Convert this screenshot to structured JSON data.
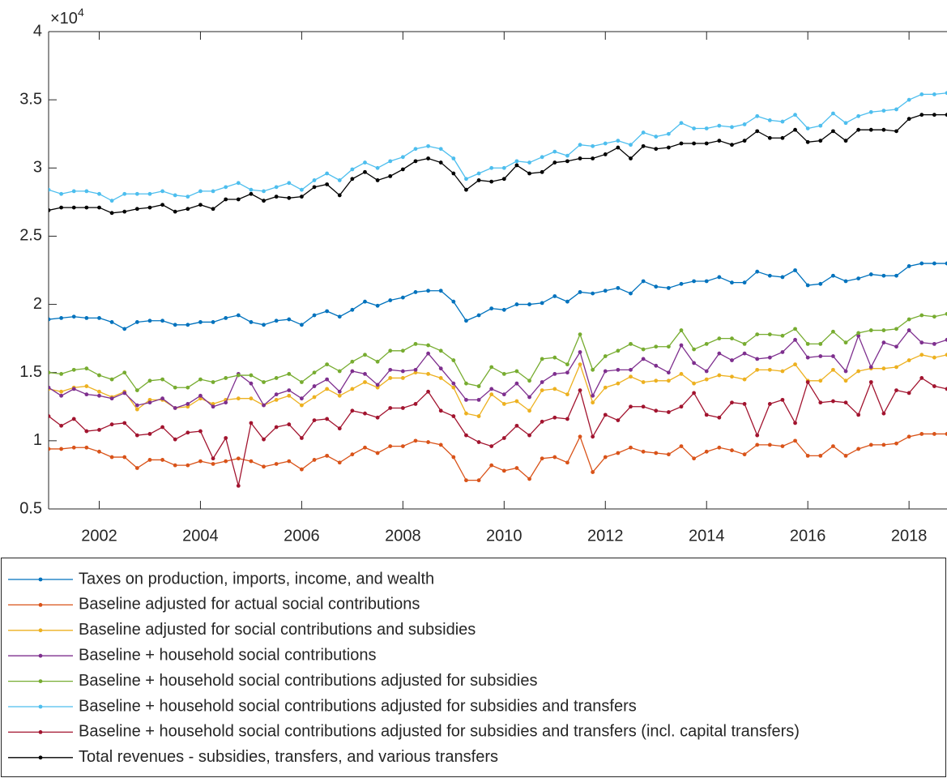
{
  "chart_data": {
    "type": "line",
    "y_multiplier": {
      "base": "×10",
      "exponent": "4"
    },
    "xlim": [
      2001,
      2018.75
    ],
    "xticks": [
      2002,
      2004,
      2006,
      2008,
      2010,
      2012,
      2014,
      2016,
      2018
    ],
    "ylim": [
      0.5,
      4
    ],
    "yticks": [
      0.5,
      1,
      1.5,
      2,
      2.5,
      3,
      3.5,
      4
    ],
    "x": [
      2001,
      2001.25,
      2001.5,
      2001.75,
      2002,
      2002.25,
      2002.5,
      2002.75,
      2003,
      2003.25,
      2003.5,
      2003.75,
      2004,
      2004.25,
      2004.5,
      2004.75,
      2005,
      2005.25,
      2005.5,
      2005.75,
      2006,
      2006.25,
      2006.5,
      2006.75,
      2007,
      2007.25,
      2007.5,
      2007.75,
      2008,
      2008.25,
      2008.5,
      2008.75,
      2009,
      2009.25,
      2009.5,
      2009.75,
      2010,
      2010.25,
      2010.5,
      2010.75,
      2011,
      2011.25,
      2011.5,
      2011.75,
      2012,
      2012.25,
      2012.5,
      2012.75,
      2013,
      2013.25,
      2013.5,
      2013.75,
      2014,
      2014.25,
      2014.5,
      2014.75,
      2015,
      2015.25,
      2015.5,
      2015.75,
      2016,
      2016.25,
      2016.5,
      2016.75,
      2017,
      2017.25,
      2017.5,
      2017.75,
      2018,
      2018.25,
      2018.5,
      2018.75
    ],
    "series": [
      {
        "name": "Taxes on production, imports, income, and wealth",
        "color": "#0072bd",
        "values": [
          1.89,
          1.9,
          1.91,
          1.9,
          1.9,
          1.87,
          1.82,
          1.87,
          1.88,
          1.88,
          1.85,
          1.85,
          1.87,
          1.87,
          1.9,
          1.92,
          1.87,
          1.85,
          1.88,
          1.89,
          1.85,
          1.92,
          1.95,
          1.91,
          1.96,
          2.02,
          1.99,
          2.03,
          2.05,
          2.09,
          2.1,
          2.1,
          2.02,
          1.88,
          1.92,
          1.97,
          1.96,
          2.0,
          2.0,
          2.01,
          2.06,
          2.02,
          2.09,
          2.08,
          2.1,
          2.12,
          2.08,
          2.17,
          2.13,
          2.12,
          2.15,
          2.17,
          2.17,
          2.2,
          2.16,
          2.16,
          2.24,
          2.21,
          2.2,
          2.25,
          2.14,
          2.15,
          2.21,
          2.17,
          2.19,
          2.22,
          2.21,
          2.21,
          2.28,
          2.3,
          2.3,
          2.3
        ]
      },
      {
        "name": "Baseline adjusted for actual social contributions",
        "color": "#d95319",
        "values": [
          0.94,
          0.94,
          0.95,
          0.95,
          0.92,
          0.88,
          0.88,
          0.8,
          0.86,
          0.86,
          0.82,
          0.82,
          0.85,
          0.83,
          0.85,
          0.87,
          0.85,
          0.81,
          0.83,
          0.85,
          0.79,
          0.86,
          0.89,
          0.84,
          0.9,
          0.95,
          0.91,
          0.96,
          0.96,
          1.0,
          0.99,
          0.97,
          0.88,
          0.71,
          0.71,
          0.82,
          0.78,
          0.8,
          0.72,
          0.87,
          0.88,
          0.84,
          1.03,
          0.77,
          0.88,
          0.91,
          0.95,
          0.92,
          0.91,
          0.9,
          0.96,
          0.87,
          0.92,
          0.95,
          0.93,
          0.9,
          0.97,
          0.97,
          0.96,
          1.0,
          0.89,
          0.89,
          0.96,
          0.89,
          0.94,
          0.97,
          0.97,
          0.98,
          1.03,
          1.05,
          1.05,
          1.05
        ]
      },
      {
        "name": "Baseline adjusted for social contributions and subsidies",
        "color": "#edb120",
        "values": [
          1.38,
          1.36,
          1.39,
          1.4,
          1.36,
          1.32,
          1.36,
          1.23,
          1.3,
          1.3,
          1.24,
          1.25,
          1.31,
          1.27,
          1.3,
          1.31,
          1.31,
          1.26,
          1.3,
          1.33,
          1.26,
          1.32,
          1.38,
          1.33,
          1.38,
          1.43,
          1.39,
          1.46,
          1.46,
          1.5,
          1.49,
          1.46,
          1.39,
          1.2,
          1.18,
          1.34,
          1.27,
          1.29,
          1.22,
          1.37,
          1.38,
          1.34,
          1.56,
          1.28,
          1.39,
          1.42,
          1.47,
          1.43,
          1.44,
          1.44,
          1.49,
          1.42,
          1.45,
          1.48,
          1.47,
          1.45,
          1.52,
          1.52,
          1.51,
          1.56,
          1.44,
          1.44,
          1.52,
          1.44,
          1.51,
          1.53,
          1.53,
          1.54,
          1.59,
          1.63,
          1.61,
          1.63
        ]
      },
      {
        "name": "Baseline + household social contributions",
        "color": "#7e2f8e",
        "values": [
          1.39,
          1.33,
          1.38,
          1.34,
          1.33,
          1.31,
          1.35,
          1.26,
          1.28,
          1.31,
          1.24,
          1.27,
          1.33,
          1.25,
          1.28,
          1.49,
          1.42,
          1.26,
          1.34,
          1.37,
          1.31,
          1.4,
          1.45,
          1.36,
          1.51,
          1.49,
          1.41,
          1.52,
          1.51,
          1.52,
          1.64,
          1.53,
          1.42,
          1.3,
          1.3,
          1.38,
          1.34,
          1.42,
          1.32,
          1.43,
          1.49,
          1.5,
          1.65,
          1.33,
          1.51,
          1.52,
          1.52,
          1.6,
          1.55,
          1.5,
          1.7,
          1.57,
          1.51,
          1.64,
          1.59,
          1.64,
          1.6,
          1.61,
          1.65,
          1.74,
          1.61,
          1.62,
          1.62,
          1.51,
          1.77,
          1.54,
          1.72,
          1.69,
          1.81,
          1.72,
          1.71,
          1.74
        ]
      },
      {
        "name": "Baseline + household social contributions adjusted for subsidies",
        "color": "#77ac30",
        "values": [
          1.5,
          1.49,
          1.52,
          1.53,
          1.48,
          1.45,
          1.5,
          1.37,
          1.44,
          1.45,
          1.39,
          1.39,
          1.45,
          1.43,
          1.46,
          1.48,
          1.48,
          1.43,
          1.46,
          1.49,
          1.43,
          1.5,
          1.56,
          1.51,
          1.58,
          1.63,
          1.58,
          1.66,
          1.66,
          1.71,
          1.7,
          1.66,
          1.59,
          1.42,
          1.4,
          1.54,
          1.49,
          1.51,
          1.44,
          1.6,
          1.61,
          1.56,
          1.78,
          1.52,
          1.62,
          1.66,
          1.71,
          1.67,
          1.69,
          1.69,
          1.81,
          1.67,
          1.71,
          1.75,
          1.75,
          1.71,
          1.78,
          1.78,
          1.77,
          1.82,
          1.71,
          1.71,
          1.8,
          1.72,
          1.79,
          1.81,
          1.81,
          1.82,
          1.89,
          1.92,
          1.91,
          1.93
        ]
      },
      {
        "name": "Baseline + household social contributions adjusted for subsidies and transfers",
        "color": "#4dbeee",
        "values": [
          2.84,
          2.81,
          2.83,
          2.83,
          2.81,
          2.76,
          2.81,
          2.81,
          2.81,
          2.83,
          2.8,
          2.79,
          2.83,
          2.83,
          2.86,
          2.89,
          2.84,
          2.83,
          2.86,
          2.89,
          2.84,
          2.91,
          2.96,
          2.91,
          2.99,
          3.04,
          3.0,
          3.05,
          3.08,
          3.14,
          3.16,
          3.14,
          3.07,
          2.92,
          2.96,
          3.0,
          3.0,
          3.05,
          3.04,
          3.08,
          3.12,
          3.09,
          3.17,
          3.16,
          3.18,
          3.2,
          3.17,
          3.26,
          3.23,
          3.25,
          3.33,
          3.29,
          3.29,
          3.31,
          3.3,
          3.32,
          3.38,
          3.35,
          3.34,
          3.39,
          3.29,
          3.31,
          3.4,
          3.33,
          3.38,
          3.41,
          3.42,
          3.43,
          3.5,
          3.54,
          3.54,
          3.55
        ]
      },
      {
        "name": "Baseline + household social contributions adjusted for subsidies and transfers (incl. capital transfers)",
        "color": "#a2142f",
        "values": [
          1.18,
          1.11,
          1.16,
          1.07,
          1.08,
          1.12,
          1.13,
          1.04,
          1.05,
          1.1,
          1.01,
          1.06,
          1.07,
          0.87,
          1.02,
          0.67,
          1.13,
          1.01,
          1.1,
          1.12,
          1.02,
          1.15,
          1.16,
          1.09,
          1.22,
          1.2,
          1.17,
          1.24,
          1.24,
          1.27,
          1.36,
          1.22,
          1.18,
          1.04,
          0.99,
          0.96,
          1.02,
          1.11,
          1.04,
          1.14,
          1.17,
          1.16,
          1.37,
          1.03,
          1.19,
          1.15,
          1.25,
          1.25,
          1.22,
          1.21,
          1.25,
          1.35,
          1.19,
          1.17,
          1.28,
          1.27,
          1.04,
          1.27,
          1.3,
          1.13,
          1.43,
          1.28,
          1.29,
          1.28,
          1.19,
          1.43,
          1.2,
          1.37,
          1.35,
          1.46,
          1.4,
          1.38
        ]
      },
      {
        "name": "Total revenues - subsidies, transfers, and various transfers",
        "color": "#000000",
        "values": [
          2.69,
          2.71,
          2.71,
          2.71,
          2.71,
          2.67,
          2.68,
          2.7,
          2.71,
          2.73,
          2.68,
          2.7,
          2.73,
          2.7,
          2.77,
          2.77,
          2.81,
          2.76,
          2.79,
          2.78,
          2.79,
          2.86,
          2.88,
          2.8,
          2.92,
          2.97,
          2.91,
          2.94,
          2.99,
          3.05,
          3.07,
          3.04,
          2.96,
          2.84,
          2.91,
          2.9,
          2.92,
          3.02,
          2.96,
          2.97,
          3.04,
          3.05,
          3.07,
          3.07,
          3.1,
          3.15,
          3.07,
          3.16,
          3.14,
          3.15,
          3.18,
          3.18,
          3.18,
          3.2,
          3.17,
          3.2,
          3.27,
          3.22,
          3.22,
          3.28,
          3.19,
          3.2,
          3.27,
          3.2,
          3.28,
          3.28,
          3.28,
          3.27,
          3.36,
          3.39,
          3.39,
          3.39
        ]
      }
    ]
  }
}
